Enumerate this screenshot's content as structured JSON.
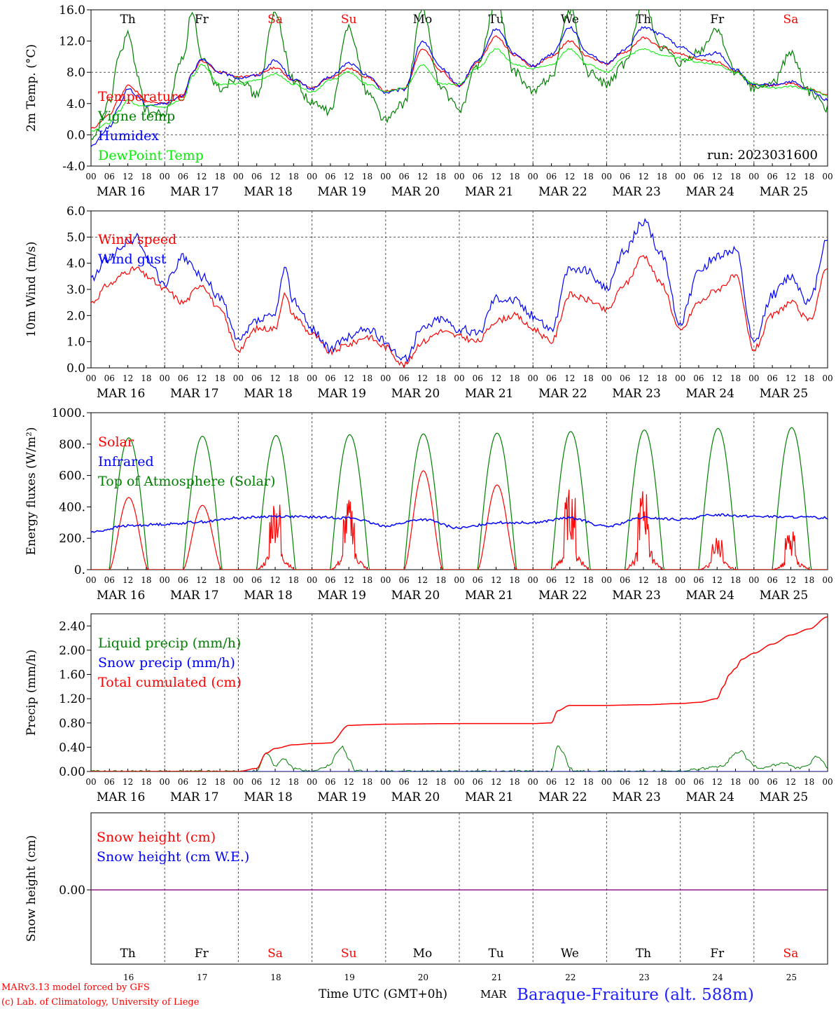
{
  "day_names": [
    "Th",
    "Fr",
    "Sa",
    "Su",
    "Mo",
    "Tu",
    "We",
    "Th",
    "Fr",
    "Sa"
  ],
  "weekend_color": "#ff0000",
  "weekday_color": "#000000",
  "date_labels": [
    "MAR 16",
    "MAR 17",
    "MAR 18",
    "MAR 19",
    "MAR 20",
    "MAR 21",
    "MAR 22",
    "MAR 23",
    "MAR 24",
    "MAR 25"
  ],
  "hour_ticks": [
    "00",
    "06",
    "12",
    "18"
  ],
  "last_hour_tick": "00",
  "footer": {
    "model": "MARv3.13 model forced by GFS",
    "copyright": "(c) Lab. of Climatology, University of Liege",
    "time_axis": "Time UTC (GMT+0h)",
    "month": "MAR",
    "day_numbers": [
      "16",
      "17",
      "18",
      "19",
      "20",
      "21",
      "22",
      "23",
      "24",
      "25"
    ],
    "station": "Baraque-Fraiture (alt. 588m)"
  },
  "chart_data": [
    {
      "type": "line",
      "ylabel": "2m Temp. (°C)",
      "yticks": [
        "16.0",
        "12.0",
        "8.0",
        "4.0",
        "0.0",
        "-4.0"
      ],
      "ylim": [
        -4,
        16
      ],
      "run_label": "run: 2023031600",
      "x_unit": "hours since MAR 16 00 UTC",
      "series": [
        {
          "name": "Temperature",
          "color": "#ff0000",
          "x": [
            0,
            6,
            9,
            12,
            15,
            18,
            24,
            30,
            33,
            36,
            42,
            48,
            54,
            60,
            66,
            72,
            78,
            84,
            90,
            96,
            102,
            108,
            114,
            120,
            126,
            132,
            138,
            144,
            150,
            156,
            162,
            168,
            174,
            180,
            186,
            192,
            198,
            204,
            210,
            216,
            222,
            228,
            234,
            240
          ],
          "values": [
            0.8,
            2.5,
            4.5,
            6.4,
            5.5,
            4.2,
            4.0,
            5.0,
            8.0,
            9.5,
            8.0,
            7.4,
            7.7,
            8.6,
            7.0,
            6.0,
            7.3,
            8.5,
            7.4,
            5.6,
            5.9,
            11.0,
            8.2,
            6.2,
            9.3,
            12.6,
            10.2,
            8.8,
            10.0,
            12.0,
            10.0,
            9.1,
            10.6,
            12.4,
            11.2,
            10.3,
            9.6,
            9.3,
            8.1,
            6.4,
            6.3,
            6.6,
            5.9,
            5.1
          ]
        },
        {
          "name": "Vigne temp",
          "color": "#008000",
          "x": [
            0,
            6,
            9,
            12,
            15,
            18,
            24,
            30,
            33,
            36,
            42,
            48,
            54,
            60,
            66,
            72,
            78,
            84,
            90,
            96,
            102,
            108,
            114,
            120,
            126,
            132,
            138,
            144,
            150,
            156,
            162,
            168,
            174,
            180,
            186,
            192,
            198,
            204,
            210,
            216,
            222,
            228,
            234,
            240
          ],
          "values": [
            -1.0,
            4.0,
            10.0,
            13.0,
            8.0,
            3.0,
            2.6,
            10.0,
            16.0,
            9.5,
            6.0,
            7.5,
            5.0,
            15.5,
            7.0,
            4.0,
            3.0,
            14.0,
            5.5,
            1.9,
            4.0,
            16.0,
            6.0,
            3.2,
            9.0,
            17.0,
            8.0,
            5.5,
            7.5,
            16.0,
            8.0,
            6.5,
            9.0,
            17.0,
            11.0,
            9.0,
            10.5,
            13.5,
            8.0,
            6.0,
            6.5,
            10.5,
            5.5,
            3.3
          ]
        },
        {
          "name": "Humidex",
          "color": "#0000ff",
          "x": [
            0,
            6,
            9,
            12,
            15,
            18,
            24,
            30,
            33,
            36,
            42,
            48,
            54,
            60,
            66,
            72,
            78,
            84,
            90,
            96,
            102,
            108,
            114,
            120,
            126,
            132,
            138,
            144,
            150,
            156,
            162,
            168,
            174,
            180,
            186,
            192,
            198,
            204,
            210,
            216,
            222,
            228,
            234,
            240
          ],
          "values": [
            -1.4,
            1.0,
            3.5,
            6.0,
            5.0,
            3.8,
            4.0,
            5.0,
            8.0,
            9.6,
            8.0,
            7.3,
            7.6,
            9.5,
            7.1,
            5.9,
            7.4,
            9.2,
            7.6,
            5.4,
            5.8,
            12.0,
            8.6,
            6.3,
            9.5,
            13.6,
            10.4,
            8.8,
            10.3,
            13.8,
            10.5,
            9.0,
            11.0,
            13.8,
            12.8,
            11.2,
            10.0,
            10.5,
            8.3,
            6.3,
            6.4,
            6.8,
            5.7,
            4.5
          ]
        },
        {
          "name": "DewPoint Temp",
          "color": "#00ee00",
          "x": [
            0,
            6,
            9,
            12,
            15,
            18,
            24,
            30,
            33,
            36,
            42,
            48,
            54,
            60,
            66,
            72,
            78,
            84,
            90,
            96,
            102,
            108,
            114,
            120,
            126,
            132,
            138,
            144,
            150,
            156,
            162,
            168,
            174,
            180,
            186,
            192,
            198,
            204,
            210,
            216,
            222,
            228,
            234,
            240
          ],
          "values": [
            0.5,
            1.5,
            3.0,
            4.5,
            3.8,
            3.8,
            3.6,
            4.5,
            7.5,
            9.0,
            6.5,
            6.5,
            7.0,
            7.8,
            6.5,
            5.5,
            7.0,
            8.0,
            6.5,
            5.5,
            6.0,
            9.0,
            6.5,
            6.5,
            8.5,
            11.0,
            9.0,
            8.5,
            9.0,
            11.0,
            9.0,
            8.0,
            10.0,
            11.0,
            10.2,
            9.8,
            9.3,
            9.0,
            8.0,
            6.5,
            6.0,
            6.2,
            5.8,
            5.0
          ]
        }
      ]
    },
    {
      "type": "line",
      "ylabel": "10m Wind (m/s)",
      "yticks": [
        "6.0",
        "5.0",
        "4.0",
        "3.0",
        "2.0",
        "1.0",
        "0.0"
      ],
      "ylim": [
        0,
        6
      ],
      "series": [
        {
          "name": "Wind speed",
          "color": "#ff0000",
          "x": [
            0,
            6,
            12,
            15,
            18,
            24,
            30,
            36,
            42,
            48,
            54,
            60,
            63,
            66,
            72,
            78,
            84,
            90,
            96,
            102,
            108,
            114,
            120,
            126,
            132,
            138,
            144,
            150,
            156,
            162,
            168,
            174,
            180,
            186,
            192,
            198,
            204,
            210,
            216,
            222,
            228,
            234,
            240
          ],
          "values": [
            2.5,
            3.2,
            3.7,
            3.8,
            3.5,
            3.0,
            2.5,
            3.2,
            2.2,
            0.7,
            1.5,
            1.5,
            2.8,
            2.0,
            1.3,
            0.6,
            0.9,
            1.2,
            0.8,
            0.1,
            1.0,
            1.4,
            1.2,
            1.0,
            1.8,
            2.0,
            1.5,
            1.0,
            2.8,
            2.6,
            2.2,
            3.2,
            4.3,
            3.2,
            1.4,
            2.5,
            3.0,
            3.5,
            0.7,
            2.0,
            2.5,
            1.8,
            3.8
          ]
        },
        {
          "name": "Wind gust",
          "color": "#0000ff",
          "x": [
            0,
            6,
            12,
            15,
            18,
            24,
            30,
            36,
            42,
            48,
            54,
            60,
            63,
            66,
            72,
            78,
            84,
            90,
            96,
            102,
            108,
            114,
            120,
            126,
            132,
            138,
            144,
            150,
            156,
            162,
            168,
            174,
            180,
            186,
            192,
            198,
            204,
            210,
            216,
            222,
            228,
            234,
            240
          ],
          "values": [
            3.4,
            4.2,
            4.8,
            5.0,
            4.2,
            3.2,
            4.2,
            3.5,
            2.7,
            1.0,
            1.8,
            2.0,
            3.8,
            2.6,
            1.5,
            0.7,
            1.2,
            1.5,
            1.0,
            0.3,
            1.5,
            1.9,
            1.5,
            1.3,
            2.7,
            2.6,
            2.0,
            1.5,
            3.8,
            3.7,
            3.0,
            4.5,
            5.6,
            4.3,
            1.7,
            3.7,
            4.3,
            4.5,
            0.9,
            2.8,
            3.5,
            2.5,
            5.0
          ]
        }
      ]
    },
    {
      "type": "line",
      "ylabel": "Energy fluxes (W/m²)",
      "yticks": [
        "1000.",
        "800.",
        "600.",
        "400.",
        "200.",
        "0."
      ],
      "ylim": [
        0,
        1000
      ],
      "series": [
        {
          "name": "Solar",
          "color": "#ff0000",
          "day_peaks": [
            460,
            410,
            470,
            450,
            630,
            540,
            520,
            530,
            220,
            250
          ]
        },
        {
          "name": "Infrared",
          "color": "#0000ff",
          "x": [
            0,
            12,
            24,
            36,
            48,
            60,
            72,
            84,
            96,
            108,
            120,
            132,
            144,
            156,
            168,
            180,
            192,
            204,
            216,
            228,
            240
          ],
          "values": [
            240,
            280,
            290,
            305,
            330,
            340,
            335,
            330,
            280,
            320,
            265,
            300,
            300,
            330,
            275,
            330,
            320,
            350,
            340,
            335,
            330
          ]
        },
        {
          "name": "Top of Atmosphere (Solar)",
          "color": "#008000",
          "day_peaks": [
            840,
            850,
            855,
            860,
            865,
            870,
            880,
            890,
            900,
            905
          ]
        }
      ]
    },
    {
      "type": "line",
      "ylabel": "Precip (mm/h)",
      "yticks": [
        "2.40",
        "2.00",
        "1.60",
        "1.20",
        "0.80",
        "0.40",
        "0.00"
      ],
      "ylim": [
        0,
        2.6
      ],
      "series": [
        {
          "name": "Liquid precip (mm/h)",
          "color": "#008000",
          "x": [
            0,
            48,
            54,
            57,
            60,
            63,
            66,
            72,
            78,
            80,
            82,
            84,
            86,
            90,
            96,
            120,
            144,
            150,
            152,
            154,
            156,
            158,
            168,
            192,
            200,
            206,
            210,
            212,
            214,
            216,
            218,
            222,
            226,
            230,
            234,
            236,
            238,
            240
          ],
          "values": [
            0,
            0,
            0,
            0.32,
            0.1,
            0.2,
            0.05,
            0,
            0.1,
            0.3,
            0.4,
            0.2,
            0.02,
            0,
            0,
            0,
            0,
            0,
            0.44,
            0.3,
            0.05,
            0,
            0,
            0,
            0.05,
            0.1,
            0.3,
            0.35,
            0.2,
            0.1,
            0.05,
            0.1,
            0.15,
            0.05,
            0.1,
            0.25,
            0.2,
            0.05
          ]
        },
        {
          "name": "Snow precip (mm/h)",
          "color": "#0000ff",
          "x": [
            0,
            240
          ],
          "values": [
            0,
            0
          ]
        },
        {
          "name": "Total cumulated (cm)",
          "color": "#ff0000",
          "x": [
            0,
            48,
            54,
            57,
            60,
            66,
            72,
            78,
            84,
            90,
            96,
            120,
            144,
            150,
            152,
            156,
            168,
            180,
            192,
            198,
            204,
            206,
            208,
            210,
            212,
            216,
            222,
            228,
            234,
            240
          ],
          "values": [
            0,
            0,
            0.05,
            0.3,
            0.38,
            0.44,
            0.46,
            0.47,
            0.76,
            0.77,
            0.78,
            0.79,
            0.79,
            0.8,
            1.0,
            1.09,
            1.09,
            1.1,
            1.12,
            1.14,
            1.2,
            1.4,
            1.6,
            1.7,
            1.85,
            1.95,
            2.1,
            2.25,
            2.35,
            2.55
          ]
        }
      ]
    },
    {
      "type": "line",
      "ylabel": "Snow height (cm)",
      "yticks": [
        "0.00"
      ],
      "series": [
        {
          "name": "Snow height (cm)",
          "color": "#ff0000",
          "x": [
            0,
            240
          ],
          "values": [
            0,
            0
          ]
        },
        {
          "name": "Snow height (cm W.E.)",
          "color": "#0000ff",
          "x": [
            0,
            240
          ],
          "values": [
            0,
            0
          ]
        }
      ]
    }
  ]
}
